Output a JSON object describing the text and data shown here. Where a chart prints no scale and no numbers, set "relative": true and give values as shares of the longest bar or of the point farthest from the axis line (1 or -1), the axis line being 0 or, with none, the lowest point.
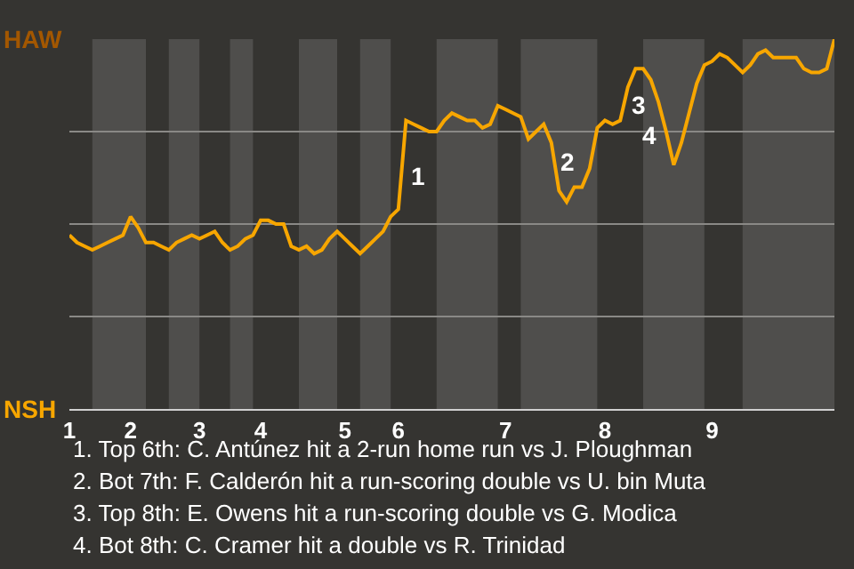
{
  "chart_data": {
    "type": "line",
    "relative": true,
    "categories": [
      "1",
      null,
      null,
      null,
      null,
      null,
      null,
      null,
      "2",
      null,
      null,
      null,
      null,
      null,
      null,
      null,
      null,
      "3",
      null,
      null,
      null,
      null,
      null,
      null,
      null,
      "4",
      null,
      null,
      null,
      null,
      null,
      null,
      null,
      null,
      null,
      null,
      "5",
      null,
      null,
      null,
      null,
      null,
      null,
      "6",
      null,
      null,
      null,
      null,
      null,
      null,
      null,
      null,
      null,
      null,
      null,
      null,
      null,
      "7",
      null,
      null,
      null,
      null,
      null,
      null,
      null,
      null,
      null,
      null,
      null,
      null,
      "8",
      null,
      null,
      null,
      null,
      null,
      null,
      null,
      null,
      null,
      null,
      null,
      null,
      null,
      "9",
      null,
      null,
      null,
      null,
      null,
      null,
      null,
      null,
      null,
      null,
      null,
      null,
      null,
      null,
      null,
      null
    ],
    "series": [
      {
        "color": "#f7a600",
        "values": [
          0.47,
          0.45,
          0.44,
          0.43,
          0.44,
          0.45,
          0.46,
          0.47,
          0.52,
          0.49,
          0.45,
          0.45,
          0.44,
          0.43,
          0.45,
          0.46,
          0.47,
          0.46,
          0.47,
          0.48,
          0.45,
          0.43,
          0.44,
          0.46,
          0.47,
          0.51,
          0.51,
          0.5,
          0.5,
          0.44,
          0.43,
          0.44,
          0.42,
          0.43,
          0.46,
          0.48,
          0.46,
          0.44,
          0.42,
          0.44,
          0.46,
          0.48,
          0.52,
          0.54,
          0.78,
          0.77,
          0.76,
          0.75,
          0.75,
          0.78,
          0.8,
          0.79,
          0.78,
          0.78,
          0.76,
          0.77,
          0.82,
          0.81,
          0.8,
          0.79,
          0.73,
          0.75,
          0.77,
          0.72,
          0.59,
          0.56,
          0.6,
          0.6,
          0.65,
          0.76,
          0.78,
          0.77,
          0.78,
          0.87,
          0.92,
          0.92,
          0.89,
          0.83,
          0.75,
          0.66,
          0.72,
          0.8,
          0.88,
          0.93,
          0.94,
          0.96,
          0.95,
          0.93,
          0.91,
          0.93,
          0.96,
          0.97,
          0.95,
          0.95,
          0.95,
          0.95,
          0.92,
          0.91,
          0.91,
          0.92,
          1.0
        ]
      }
    ],
    "grid": "y",
    "marker": "none",
    "line_style": "solid",
    "annotations": [
      "HAW",
      "NSH",
      "1",
      "2",
      "3",
      "4",
      "1. Top 6th: C. Antúnez hit a 2-run home run vs J. Ploughman",
      "2. Bot 7th: F. Calderón hit a run-scoring double vs U. bin Muta",
      "3. Top 8th: E. Owens hit a run-scoring double vs G. Modica",
      "4. Bot 8th: C. Cramer hit a double vs R. Trinidad"
    ]
  }
}
